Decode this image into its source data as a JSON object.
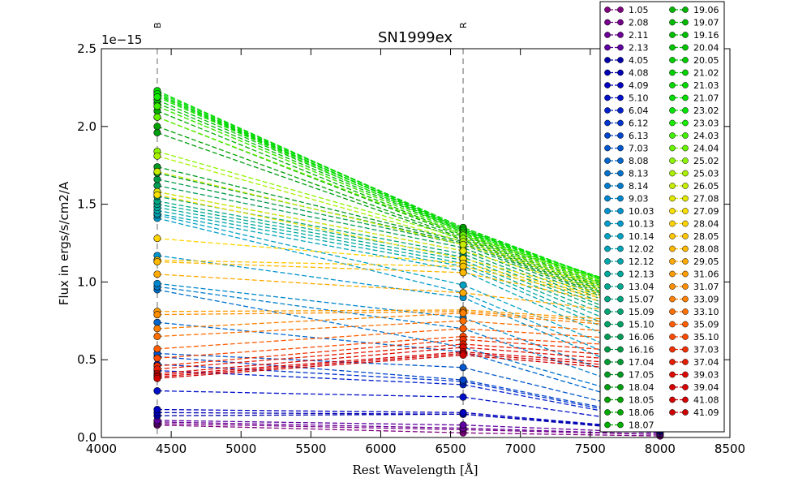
{
  "chart_data": {
    "type": "line",
    "title": "SN1999ex",
    "xlabel": "Rest Wavelength [Å]",
    "ylabel": "Flux in ergs/s/cm2/A",
    "offset_text": "1e−15",
    "xlim": [
      4000,
      8500
    ],
    "ylim": [
      0.0,
      2.5
    ],
    "xticks": [
      4000,
      4500,
      5000,
      5500,
      6000,
      6500,
      7000,
      7500,
      8000,
      8500
    ],
    "xtick_labels": [
      "4000",
      "4500",
      "5000",
      "5500",
      "6000",
      "6500",
      "7000",
      "7500",
      "8000",
      "8500"
    ],
    "yticks": [
      0.0,
      0.5,
      1.0,
      1.5,
      2.0,
      2.5
    ],
    "ytick_labels": [
      "0.0",
      "0.5",
      "1.0",
      "1.5",
      "2.0",
      "2.5"
    ],
    "filter_lines": [
      {
        "label": "B",
        "x": 4400
      },
      {
        "label": "R",
        "x": 6590
      }
    ],
    "x": [
      4400,
      6590,
      8000
    ],
    "grid": false,
    "legend_position": "upper-right",
    "series": [
      {
        "name": "1.05",
        "color": "#7f007f",
        "values": [
          0.08,
          0.03,
          0.01
        ]
      },
      {
        "name": "2.08",
        "color": "#75008a",
        "values": [
          0.09,
          0.05,
          0.02
        ]
      },
      {
        "name": "2.11",
        "color": "#6a0095",
        "values": [
          0.1,
          0.06,
          0.02
        ]
      },
      {
        "name": "2.13",
        "color": "#5e00a1",
        "values": [
          0.11,
          0.08,
          0.03
        ]
      },
      {
        "name": "4.05",
        "color": "#0000a8",
        "values": [
          0.14,
          0.15,
          0.04
        ]
      },
      {
        "name": "4.08",
        "color": "#0000b4",
        "values": [
          0.16,
          0.15,
          0.05
        ]
      },
      {
        "name": "4.09",
        "color": "#0000c0",
        "values": [
          0.18,
          0.16,
          0.05
        ]
      },
      {
        "name": "5.10",
        "color": "#0010c8",
        "values": [
          0.3,
          0.26,
          0.08
        ]
      },
      {
        "name": "6.04",
        "color": "#0020cc",
        "values": [
          0.43,
          0.34,
          0.1
        ]
      },
      {
        "name": "6.12",
        "color": "#0034cc",
        "values": [
          0.47,
          0.36,
          0.11
        ]
      },
      {
        "name": "6.13",
        "color": "#0046cc",
        "values": [
          0.52,
          0.37,
          0.12
        ]
      },
      {
        "name": "7.03",
        "color": "#0056cc",
        "values": [
          0.54,
          0.45,
          0.14
        ]
      },
      {
        "name": "8.08",
        "color": "#0066cc",
        "values": [
          0.74,
          0.55,
          0.18
        ]
      },
      {
        "name": "8.13",
        "color": "#0072cc",
        "values": [
          0.95,
          0.58,
          0.22
        ]
      },
      {
        "name": "8.14",
        "color": "#007ccc",
        "values": [
          0.97,
          0.7,
          0.26
        ]
      },
      {
        "name": "9.03",
        "color": "#0086cc",
        "values": [
          0.99,
          0.77,
          0.3
        ]
      },
      {
        "name": "10.03",
        "color": "#0092cc",
        "values": [
          1.17,
          0.9,
          0.35
        ]
      },
      {
        "name": "10.13",
        "color": "#009ccc",
        "values": [
          1.41,
          0.93,
          0.4
        ]
      },
      {
        "name": "10.14",
        "color": "#00a2c4",
        "values": [
          1.43,
          0.98,
          0.45
        ]
      },
      {
        "name": "12.02",
        "color": "#00a4b8",
        "values": [
          1.44,
          1.07,
          0.5
        ]
      },
      {
        "name": "12.12",
        "color": "#00a6aa",
        "values": [
          1.46,
          1.1,
          0.55
        ]
      },
      {
        "name": "12.13",
        "color": "#00a89c",
        "values": [
          1.48,
          1.12,
          0.58
        ]
      },
      {
        "name": "13.04",
        "color": "#00a890",
        "values": [
          1.5,
          1.14,
          0.62
        ]
      },
      {
        "name": "15.07",
        "color": "#00a682",
        "values": [
          1.52,
          1.16,
          0.65
        ]
      },
      {
        "name": "15.09",
        "color": "#00a474",
        "values": [
          1.55,
          1.18,
          0.68
        ]
      },
      {
        "name": "15.10",
        "color": "#00a266",
        "values": [
          1.58,
          1.2,
          0.7
        ]
      },
      {
        "name": "16.06",
        "color": "#009c56",
        "values": [
          1.62,
          1.22,
          0.72
        ]
      },
      {
        "name": "16.16",
        "color": "#009a46",
        "values": [
          1.66,
          1.24,
          0.74
        ]
      },
      {
        "name": "17.04",
        "color": "#009a34",
        "values": [
          1.7,
          1.25,
          0.76
        ]
      },
      {
        "name": "17.05",
        "color": "#009a22",
        "values": [
          1.74,
          1.26,
          0.77
        ]
      },
      {
        "name": "18.04",
        "color": "#009e10",
        "values": [
          1.96,
          1.27,
          0.78
        ]
      },
      {
        "name": "18.05",
        "color": "#00a200",
        "values": [
          2.0,
          1.28,
          0.79
        ]
      },
      {
        "name": "18.06",
        "color": "#00a800",
        "values": [
          2.06,
          1.29,
          0.8
        ]
      },
      {
        "name": "18.07",
        "color": "#00ae00",
        "values": [
          2.1,
          1.3,
          0.81
        ]
      },
      {
        "name": "19.06",
        "color": "#00b400",
        "values": [
          2.13,
          1.31,
          0.82
        ]
      },
      {
        "name": "19.07",
        "color": "#00ba00",
        "values": [
          2.15,
          1.32,
          0.83
        ]
      },
      {
        "name": "19.16",
        "color": "#00c000",
        "values": [
          2.17,
          1.33,
          0.84
        ]
      },
      {
        "name": "20.04",
        "color": "#00c600",
        "values": [
          2.19,
          1.34,
          0.85
        ]
      },
      {
        "name": "20.05",
        "color": "#00cc00",
        "values": [
          2.2,
          1.34,
          0.86
        ]
      },
      {
        "name": "21.02",
        "color": "#00d200",
        "values": [
          2.21,
          1.35,
          0.87
        ]
      },
      {
        "name": "21.03",
        "color": "#00d800",
        "values": [
          2.22,
          1.35,
          0.88
        ]
      },
      {
        "name": "21.07",
        "color": "#00de00",
        "values": [
          2.23,
          1.34,
          0.89
        ]
      },
      {
        "name": "23.02",
        "color": "#00e400",
        "values": [
          2.21,
          1.33,
          0.9
        ]
      },
      {
        "name": "23.03",
        "color": "#18ec00",
        "values": [
          2.19,
          1.32,
          0.9
        ]
      },
      {
        "name": "24.03",
        "color": "#40f000",
        "values": [
          2.13,
          1.31,
          0.89
        ]
      },
      {
        "name": "24.04",
        "color": "#66f400",
        "values": [
          2.06,
          1.3,
          0.88
        ]
      },
      {
        "name": "25.02",
        "color": "#8cf400",
        "values": [
          1.84,
          1.28,
          0.87
        ]
      },
      {
        "name": "25.03",
        "color": "#aaf000",
        "values": [
          1.81,
          1.26,
          0.86
        ]
      },
      {
        "name": "26.05",
        "color": "#c8ec00",
        "values": [
          1.71,
          1.24,
          0.85
        ]
      },
      {
        "name": "27.08",
        "color": "#e2e800",
        "values": [
          1.58,
          1.2,
          0.84
        ]
      },
      {
        "name": "27.09",
        "color": "#f8e000",
        "values": [
          1.56,
          1.15,
          0.83
        ]
      },
      {
        "name": "28.04",
        "color": "#ffd400",
        "values": [
          1.28,
          1.12,
          0.82
        ]
      },
      {
        "name": "28.05",
        "color": "#ffc600",
        "values": [
          1.14,
          1.1,
          0.81
        ]
      },
      {
        "name": "28.08",
        "color": "#ffb800",
        "values": [
          1.13,
          1.06,
          0.8
        ]
      },
      {
        "name": "29.05",
        "color": "#ffaa00",
        "values": [
          1.05,
          0.93,
          0.78
        ]
      },
      {
        "name": "31.06",
        "color": "#ff9c00",
        "values": [
          0.81,
          0.82,
          0.74
        ]
      },
      {
        "name": "31.07",
        "color": "#ff8e00",
        "values": [
          0.79,
          0.81,
          0.72
        ]
      },
      {
        "name": "33.09",
        "color": "#ff8000",
        "values": [
          0.7,
          0.8,
          0.7
        ]
      },
      {
        "name": "33.10",
        "color": "#ff7000",
        "values": [
          0.65,
          0.75,
          0.66
        ]
      },
      {
        "name": "35.09",
        "color": "#ff5e00",
        "values": [
          0.57,
          0.7,
          0.62
        ]
      },
      {
        "name": "35.10",
        "color": "#ff4a00",
        "values": [
          0.51,
          0.65,
          0.58
        ]
      },
      {
        "name": "37.03",
        "color": "#f03000",
        "values": [
          0.46,
          0.63,
          0.54
        ]
      },
      {
        "name": "37.04",
        "color": "#e41c00",
        "values": [
          0.44,
          0.6,
          0.51
        ]
      },
      {
        "name": "39.03",
        "color": "#dc0a00",
        "values": [
          0.41,
          0.58,
          0.48
        ]
      },
      {
        "name": "39.04",
        "color": "#d80000",
        "values": [
          0.4,
          0.55,
          0.46
        ]
      },
      {
        "name": "41.08",
        "color": "#d20000",
        "values": [
          0.39,
          0.54,
          0.44
        ]
      },
      {
        "name": "41.09",
        "color": "#cc0000",
        "values": [
          0.38,
          0.53,
          0.42
        ]
      }
    ]
  }
}
